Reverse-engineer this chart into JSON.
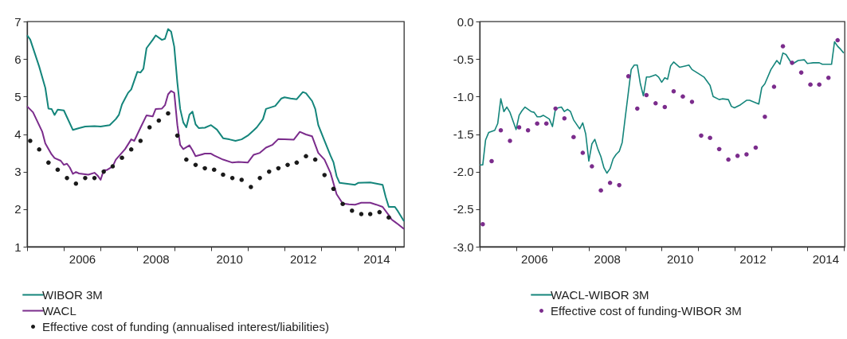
{
  "chart_data": [
    {
      "type": "line",
      "legend": "bottom",
      "xlim": [
        "2005-01-01",
        "2015-04-01"
      ],
      "ylim": [
        1,
        7
      ],
      "yticks": [
        1,
        2,
        3,
        4,
        5,
        6,
        7
      ],
      "xticks": [
        {
          "value": "2005-01-01",
          "label": null
        },
        {
          "value": "2006-01-01",
          "label": null
        },
        {
          "value": "2006-07-01",
          "label": "2006"
        },
        {
          "value": "2007-01-01",
          "label": null
        },
        {
          "value": "2008-01-01",
          "label": null
        },
        {
          "value": "2008-07-01",
          "label": "2008"
        },
        {
          "value": "2009-01-01",
          "label": null
        },
        {
          "value": "2010-01-01",
          "label": null
        },
        {
          "value": "2010-07-01",
          "label": "2010"
        },
        {
          "value": "2011-01-01",
          "label": null
        },
        {
          "value": "2012-01-01",
          "label": null
        },
        {
          "value": "2012-07-01",
          "label": "2012"
        },
        {
          "value": "2013-01-01",
          "label": null
        },
        {
          "value": "2014-01-01",
          "label": null
        },
        {
          "value": "2014-07-01",
          "label": "2014"
        },
        {
          "value": "2015-01-01",
          "label": null
        }
      ],
      "series": [
        {
          "name": "WIBOR 3M",
          "type": "line",
          "color": "#14857b",
          "x": [
            "2005-01",
            "2005-02",
            "2005-05",
            "2005-07",
            "2005-08",
            "2005-09",
            "2005-10",
            "2005-11",
            "2006-01",
            "2006-02",
            "2006-04",
            "2006-06",
            "2006-08",
            "2006-11",
            "2007-01",
            "2007-04",
            "2007-06",
            "2007-07",
            "2007-08",
            "2007-09",
            "2007-10",
            "2007-11",
            "2008-01",
            "2008-02",
            "2008-03",
            "2008-04",
            "2008-06",
            "2008-07",
            "2008-09",
            "2008-10",
            "2008-11",
            "2008-12",
            "2009-01",
            "2009-02",
            "2009-03",
            "2009-04",
            "2009-05",
            "2009-06",
            "2009-07",
            "2009-08",
            "2009-09",
            "2009-11",
            "2010-01",
            "2010-03",
            "2010-05",
            "2010-07",
            "2010-09",
            "2010-11",
            "2011-01",
            "2011-03",
            "2011-04",
            "2011-06",
            "2011-07",
            "2011-10",
            "2011-12",
            "2012-01",
            "2012-03",
            "2012-05",
            "2012-07",
            "2012-08",
            "2012-10",
            "2012-11",
            "2012-12",
            "2013-02",
            "2013-04",
            "2013-05",
            "2013-06",
            "2013-07",
            "2013-09",
            "2013-12",
            "2014-01",
            "2014-05",
            "2014-07",
            "2014-09",
            "2014-10",
            "2014-11",
            "2014-12",
            "2015-01",
            "2015-02",
            "2015-04"
          ],
          "values": [
            6.63,
            6.52,
            5.8,
            5.23,
            4.68,
            4.67,
            4.51,
            4.65,
            4.63,
            4.45,
            4.11,
            4.16,
            4.2,
            4.21,
            4.2,
            4.24,
            4.4,
            4.51,
            4.79,
            4.95,
            5.1,
            5.19,
            5.66,
            5.64,
            5.74,
            6.29,
            6.51,
            6.63,
            6.51,
            6.54,
            6.8,
            6.73,
            6.33,
            5.37,
            4.67,
            4.31,
            4.18,
            4.52,
            4.6,
            4.26,
            4.16,
            4.17,
            4.24,
            4.12,
            3.89,
            3.86,
            3.82,
            3.86,
            3.96,
            4.1,
            4.18,
            4.4,
            4.67,
            4.75,
            4.95,
            4.98,
            4.95,
            4.93,
            5.12,
            5.09,
            4.88,
            4.67,
            4.24,
            3.82,
            3.43,
            3.25,
            2.88,
            2.7,
            2.68,
            2.65,
            2.7,
            2.71,
            2.68,
            2.65,
            2.33,
            2.06,
            2.06,
            2.06,
            1.94,
            1.68
          ]
        },
        {
          "name": "WACL",
          "type": "line",
          "color": "#7b2c8c",
          "x": [
            "2005-01",
            "2005-03",
            "2005-06",
            "2005-07",
            "2005-09",
            "2005-10",
            "2005-12",
            "2006-01",
            "2006-02",
            "2006-03",
            "2006-04",
            "2006-05",
            "2006-06",
            "2006-09",
            "2006-11",
            "2006-12",
            "2007-01",
            "2007-02",
            "2007-03",
            "2007-05",
            "2007-06",
            "2007-09",
            "2007-11",
            "2007-12",
            "2008-02",
            "2008-04",
            "2008-06",
            "2008-07",
            "2008-09",
            "2008-10",
            "2008-11",
            "2008-12",
            "2009-01",
            "2009-02",
            "2009-03",
            "2009-04",
            "2009-06",
            "2009-07",
            "2009-08",
            "2009-11",
            "2010-01",
            "2010-02",
            "2010-05",
            "2010-08",
            "2010-10",
            "2011-01",
            "2011-03",
            "2011-05",
            "2011-07",
            "2011-09",
            "2011-11",
            "2012-01",
            "2012-04",
            "2012-06",
            "2012-08",
            "2012-10",
            "2012-12",
            "2013-02",
            "2013-04",
            "2013-06",
            "2013-08",
            "2013-10",
            "2013-12",
            "2014-02",
            "2014-05",
            "2014-07",
            "2014-09",
            "2014-11",
            "2014-12",
            "2015-01",
            "2015-02",
            "2015-04"
          ],
          "values": [
            4.74,
            4.58,
            4.06,
            3.75,
            3.46,
            3.36,
            3.29,
            3.18,
            3.21,
            3.11,
            2.94,
            2.99,
            2.95,
            2.92,
            2.97,
            2.9,
            2.78,
            3.04,
            3.04,
            3.14,
            3.32,
            3.6,
            3.86,
            3.82,
            4.17,
            4.5,
            4.47,
            4.67,
            4.68,
            4.77,
            5.06,
            5.15,
            5.1,
            4.24,
            3.71,
            3.6,
            3.7,
            3.57,
            3.41,
            3.48,
            3.48,
            3.43,
            3.32,
            3.24,
            3.26,
            3.24,
            3.45,
            3.5,
            3.64,
            3.71,
            3.87,
            3.86,
            3.85,
            4.06,
            3.99,
            3.94,
            3.5,
            3.32,
            2.97,
            2.4,
            2.15,
            2.13,
            2.12,
            2.17,
            2.17,
            2.12,
            2.06,
            1.84,
            1.72,
            1.66,
            1.6,
            1.47
          ]
        },
        {
          "name": "Effective cost of funding (annualised interest/liabilities)",
          "type": "scatter",
          "color": "#1a1a1a",
          "x": [
            "2005-02",
            "2005-05",
            "2005-08",
            "2005-11",
            "2006-02",
            "2006-05",
            "2006-08",
            "2006-11",
            "2007-02",
            "2007-05",
            "2007-08",
            "2007-11",
            "2008-02",
            "2008-05",
            "2008-08",
            "2008-11",
            "2009-02",
            "2009-05",
            "2009-08",
            "2009-11",
            "2010-02",
            "2010-05",
            "2010-08",
            "2010-11",
            "2011-02",
            "2011-05",
            "2011-08",
            "2011-11",
            "2012-02",
            "2012-05",
            "2012-08",
            "2012-11",
            "2013-02",
            "2013-05",
            "2013-08",
            "2013-11",
            "2014-02",
            "2014-05",
            "2014-08",
            "2014-11"
          ],
          "values": [
            3.82,
            3.59,
            3.24,
            3.05,
            2.83,
            2.68,
            2.83,
            2.83,
            3.0,
            3.14,
            3.37,
            3.59,
            3.82,
            4.18,
            4.36,
            4.55,
            3.96,
            3.32,
            3.18,
            3.09,
            3.05,
            2.92,
            2.83,
            2.78,
            2.59,
            2.83,
            3.0,
            3.09,
            3.18,
            3.24,
            3.41,
            3.32,
            2.91,
            2.54,
            2.14,
            1.96,
            1.87,
            1.87,
            1.92,
            1.78
          ]
        }
      ]
    },
    {
      "type": "line",
      "legend": "bottom",
      "xlim": [
        "2005-01-01",
        "2015-01-10"
      ],
      "ylim": [
        -3,
        0
      ],
      "yticks": [
        {
          "value": -3,
          "label": "-3.0"
        },
        -2.5,
        {
          "value": -2,
          "label": "-2.0"
        },
        -1.5,
        {
          "value": -1,
          "label": "-1.0"
        },
        -0.5,
        {
          "value": 0,
          "label": "0.0"
        }
      ],
      "xticks": [
        {
          "value": "2005-01-01",
          "label": null
        },
        {
          "value": "2006-01-01",
          "label": null
        },
        {
          "value": "2006-07-01",
          "label": "2006"
        },
        {
          "value": "2007-01-01",
          "label": null
        },
        {
          "value": "2008-01-01",
          "label": null
        },
        {
          "value": "2008-07-01",
          "label": "2008"
        },
        {
          "value": "2009-01-01",
          "label": null
        },
        {
          "value": "2010-01-01",
          "label": null
        },
        {
          "value": "2010-07-01",
          "label": "2010"
        },
        {
          "value": "2011-01-01",
          "label": null
        },
        {
          "value": "2012-01-01",
          "label": null
        },
        {
          "value": "2012-07-01",
          "label": "2012"
        },
        {
          "value": "2013-01-01",
          "label": null
        },
        {
          "value": "2014-01-01",
          "label": null
        },
        {
          "value": "2014-07-01",
          "label": "2014"
        },
        {
          "value": "2015-01-01",
          "label": null
        }
      ],
      "series": [
        {
          "name": "WACL-WIBOR 3M",
          "type": "line",
          "color": "#14857b",
          "x": [
            "2005-01",
            "2005-02",
            "2005-03",
            "2005-04",
            "2005-06",
            "2005-07",
            "2005-08",
            "2005-09",
            "2005-10",
            "2005-11",
            "2006-01",
            "2006-02",
            "2006-03",
            "2006-04",
            "2006-06",
            "2006-07",
            "2006-08",
            "2006-09",
            "2006-10",
            "2006-12",
            "2007-01",
            "2007-02",
            "2007-03",
            "2007-04",
            "2007-05",
            "2007-06",
            "2007-07",
            "2007-08",
            "2007-10",
            "2007-11",
            "2007-12",
            "2008-01",
            "2008-02",
            "2008-03",
            "2008-04",
            "2008-05",
            "2008-06",
            "2008-07",
            "2008-08",
            "2008-09",
            "2008-10",
            "2008-11",
            "2008-12",
            "2009-01",
            "2009-02",
            "2009-03",
            "2009-04",
            "2009-05",
            "2009-06",
            "2009-07",
            "2009-08",
            "2009-09",
            "2009-11",
            "2009-12",
            "2010-01",
            "2010-02",
            "2010-03",
            "2010-04",
            "2010-05",
            "2010-07",
            "2010-09",
            "2010-10",
            "2010-11",
            "2011-01",
            "2011-03",
            "2011-05",
            "2011-06",
            "2011-08",
            "2011-09",
            "2011-11",
            "2011-12",
            "2012-01",
            "2012-03",
            "2012-05",
            "2012-06",
            "2012-09",
            "2012-10",
            "2012-11",
            "2013-01",
            "2013-03",
            "2013-04",
            "2013-05",
            "2013-06",
            "2013-08",
            "2013-10",
            "2013-12",
            "2014-01",
            "2014-03",
            "2014-05",
            "2014-06",
            "2014-09",
            "2014-10",
            "2014-11",
            "2014-12",
            "2015-01"
          ],
          "values": [
            -1.91,
            -1.91,
            -1.58,
            -1.48,
            -1.45,
            -1.36,
            -1.03,
            -1.2,
            -1.14,
            -1.21,
            -1.44,
            -1.25,
            -1.19,
            -1.14,
            -1.2,
            -1.21,
            -1.27,
            -1.27,
            -1.25,
            -1.3,
            -1.4,
            -1.16,
            -1.15,
            -1.14,
            -1.2,
            -1.17,
            -1.2,
            -1.31,
            -1.43,
            -1.35,
            -1.5,
            -1.86,
            -1.63,
            -1.57,
            -1.7,
            -1.8,
            -1.95,
            -2.02,
            -1.96,
            -1.83,
            -1.77,
            -1.73,
            -1.61,
            -1.27,
            -0.94,
            -0.64,
            -0.58,
            -0.58,
            -0.83,
            -0.99,
            -0.74,
            -0.74,
            -0.71,
            -0.74,
            -0.81,
            -0.75,
            -0.77,
            -0.59,
            -0.54,
            -0.61,
            -0.59,
            -0.58,
            -0.64,
            -0.69,
            -0.74,
            -0.85,
            -1.0,
            -1.04,
            -1.03,
            -1.04,
            -1.13,
            -1.15,
            -1.11,
            -1.05,
            -1.05,
            -1.1,
            -0.88,
            -0.83,
            -0.64,
            -0.52,
            -0.57,
            -0.42,
            -0.44,
            -0.57,
            -0.52,
            -0.51,
            -0.56,
            -0.55,
            -0.55,
            -0.57,
            -0.57,
            -0.27,
            -0.33,
            -0.37,
            -0.42
          ]
        },
        {
          "name": "Effective cost of funding-WIBOR 3M",
          "type": "scatter",
          "color": "#7b2c8c",
          "x": [
            "2005-02",
            "2005-05",
            "2005-08",
            "2005-11",
            "2006-02",
            "2006-05",
            "2006-08",
            "2006-11",
            "2007-02",
            "2007-05",
            "2007-08",
            "2007-11",
            "2008-02",
            "2008-05",
            "2008-08",
            "2008-11",
            "2009-02",
            "2009-05",
            "2009-08",
            "2009-11",
            "2010-02",
            "2010-05",
            "2010-08",
            "2010-11",
            "2011-02",
            "2011-05",
            "2011-08",
            "2011-11",
            "2012-02",
            "2012-05",
            "2012-08",
            "2012-11",
            "2013-02",
            "2013-05",
            "2013-08",
            "2013-11",
            "2014-02",
            "2014-05",
            "2014-08",
            "2014-11"
          ],
          "values": [
            -2.7,
            -1.86,
            -1.45,
            -1.59,
            -1.41,
            -1.45,
            -1.36,
            -1.36,
            -1.16,
            -1.29,
            -1.54,
            -1.75,
            -1.93,
            -2.25,
            -2.15,
            -2.18,
            -0.73,
            -1.16,
            -0.98,
            -1.09,
            -1.14,
            -0.93,
            -1.0,
            -1.07,
            -1.52,
            -1.55,
            -1.7,
            -1.84,
            -1.79,
            -1.77,
            -1.68,
            -1.27,
            -0.87,
            -0.33,
            -0.55,
            -0.68,
            -0.84,
            -0.84,
            -0.75,
            -0.25
          ]
        }
      ]
    }
  ]
}
